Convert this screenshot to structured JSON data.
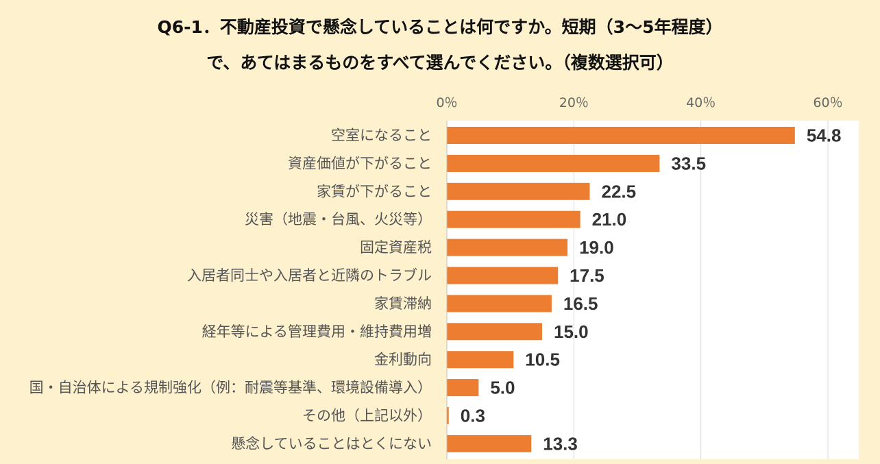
{
  "chart_data": {
    "type": "bar",
    "orientation": "horizontal",
    "title": "Q6-1．不動産投資で懸念していることは何ですか。短期（3〜5年程度）",
    "subtitle": "で、あてはまるものをすべて選んでください。（複数選択可）",
    "categories": [
      "空室になること",
      "資産価値が下がること",
      "家賃が下がること",
      "災害（地震・台風、火災等）",
      "固定資産税",
      "入居者同士や入居者と近隣のトラブル",
      "家賃滞納",
      "経年等による管理費用・維持費用増",
      "金利動向",
      "国・自治体による規制強化（例：耐震等基準、環境設備導入）",
      "その他（上記以外）",
      "懸念していることはとくにない"
    ],
    "values": [
      54.8,
      33.5,
      22.5,
      21.0,
      19.0,
      17.5,
      16.5,
      15.0,
      10.5,
      5.0,
      0.3,
      13.3
    ],
    "value_labels": [
      "54.8",
      "33.5",
      "22.5",
      "21.0",
      "19.0",
      "17.5",
      "16.5",
      "15.0",
      "10.5",
      "5.0",
      "0.3",
      "13.3"
    ],
    "xlim": [
      0,
      60
    ],
    "xticks": [
      "0％",
      "20％",
      "40％",
      "60％"
    ],
    "grid": true,
    "bar_color": "#ed7d31",
    "plot_bg": "#ffffff",
    "page_bg": "#fef1cd"
  }
}
